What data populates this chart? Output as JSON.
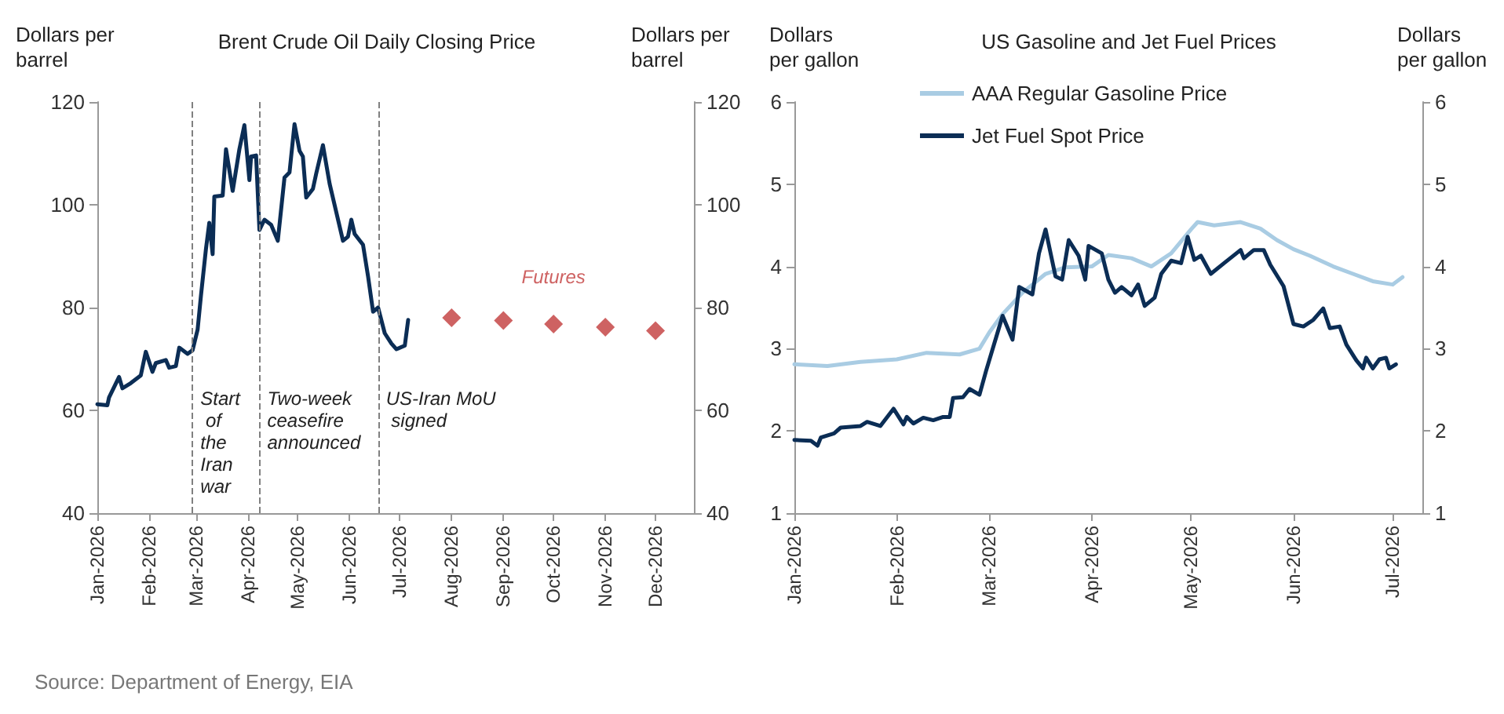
{
  "chart_data": [
    {
      "type": "line",
      "title": "Brent Crude Oil Daily Closing Price",
      "ylabel": "Dollars per barrel",
      "y2label": "Dollars per barrel",
      "annotations": [
        "Source: Department of Energy, EIA"
      ],
      "xlim": [
        "2026-01-01",
        "2026-12-24"
      ],
      "xticks": [
        {
          "value": "2026-01-01",
          "label": "Jan-2026"
        },
        {
          "value": "2026-02-01",
          "label": "Feb-2026"
        },
        {
          "value": "2026-03-01",
          "label": "Mar-2026"
        },
        {
          "value": "2026-04-01",
          "label": "Apr-2026"
        },
        {
          "value": "2026-05-01",
          "label": "May-2026"
        },
        {
          "value": "2026-06-01",
          "label": "Jun-2026"
        },
        {
          "value": "2026-07-01",
          "label": "Jul-2026"
        },
        {
          "value": "2026-08-01",
          "label": "Aug-2026"
        },
        {
          "value": "2026-09-01",
          "label": "Sep-2026"
        },
        {
          "value": "2026-10-01",
          "label": "Oct-2026"
        },
        {
          "value": "2026-11-01",
          "label": "Nov-2026"
        },
        {
          "value": "2026-12-01",
          "label": "Dec-2026"
        }
      ],
      "ylim": [
        40,
        120
      ],
      "yticks": [
        40,
        60,
        80,
        100,
        120
      ],
      "y2lim": [
        40,
        120
      ],
      "y2ticks": [
        40,
        60,
        80,
        100,
        120
      ],
      "grid": false,
      "legend": false,
      "marker": "none",
      "ref_lines": [
        {
          "axis": "x",
          "value": "2026-02-27",
          "label": "Start of the Iran war",
          "color": "#808080",
          "line_style": "dashed"
        },
        {
          "axis": "x",
          "value": "2026-04-08",
          "label": "Two-week ceasefire announced",
          "color": "#808080",
          "line_style": "dashed"
        },
        {
          "axis": "x",
          "value": "2026-06-18",
          "label": "US-Iran MoU signed",
          "color": "#808080",
          "line_style": "dashed"
        }
      ],
      "series": [
        {
          "color": "#0b2d55",
          "x": [
            "2026-01-01",
            "2026-01-07",
            "2026-01-08",
            "2026-01-14",
            "2026-01-16",
            "2026-01-21",
            "2026-01-27",
            "2026-01-30",
            "2026-02-03",
            "2026-02-05",
            "2026-02-11",
            "2026-02-13",
            "2026-02-17",
            "2026-02-19",
            "2026-02-24",
            "2026-02-27",
            "2026-03-02",
            "2026-03-04",
            "2026-03-07",
            "2026-03-09",
            "2026-03-11",
            "2026-03-12",
            "2026-03-17",
            "2026-03-19",
            "2026-03-23",
            "2026-03-27",
            "2026-03-30",
            "2026-04-02",
            "2026-04-03",
            "2026-04-06",
            "2026-04-08",
            "2026-04-11",
            "2026-04-15",
            "2026-04-19",
            "2026-04-23",
            "2026-04-26",
            "2026-04-29",
            "2026-05-02",
            "2026-05-04",
            "2026-05-06",
            "2026-05-10",
            "2026-05-12",
            "2026-05-16",
            "2026-05-20",
            "2026-05-28",
            "2026-05-31",
            "2026-06-02",
            "2026-06-04",
            "2026-06-09",
            "2026-06-12",
            "2026-06-15",
            "2026-06-18",
            "2026-06-22",
            "2026-06-26",
            "2026-06-29",
            "2026-07-04",
            "2026-07-06"
          ],
          "values": [
            61.2,
            61,
            62.5,
            66.5,
            64.3,
            65.3,
            66.8,
            71.4,
            67.5,
            69.2,
            69.8,
            68.3,
            68.6,
            72.2,
            71,
            71.7,
            75.7,
            82.3,
            91.4,
            96.5,
            90.4,
            101.6,
            101.8,
            110.8,
            102.7,
            110.8,
            115.5,
            104.8,
            109.4,
            109.6,
            95.1,
            97.1,
            96.1,
            93,
            105.3,
            106.3,
            115.7,
            110.5,
            109.4,
            101.4,
            103.1,
            106.1,
            111.6,
            104.1,
            93,
            93.8,
            97.1,
            94.3,
            92.2,
            86.1,
            79.2,
            80,
            75,
            73,
            71.9,
            72.6,
            77.6
          ]
        },
        {
          "type": "scatter",
          "name": "Futures",
          "color": "#c23b3b",
          "marker": "diamond",
          "x": [
            "2026-08-01",
            "2026-09-01",
            "2026-10-01",
            "2026-11-01",
            "2026-12-01"
          ],
          "values": [
            78,
            77.5,
            76.8,
            76.2,
            75.5
          ]
        }
      ]
    },
    {
      "type": "line",
      "title": "US Gasoline and Jet Fuel Prices",
      "ylabel": "Dollars per gallon",
      "y2label": "Dollars per gallon",
      "xlim": [
        "2026-01-01",
        "2026-07-10"
      ],
      "xticks": [
        {
          "value": "2026-01-01",
          "label": "Jan-2026"
        },
        {
          "value": "2026-02-01",
          "label": "Feb-2026"
        },
        {
          "value": "2026-03-01",
          "label": "Mar-2026"
        },
        {
          "value": "2026-04-01",
          "label": "Apr-2026"
        },
        {
          "value": "2026-05-01",
          "label": "May-2026"
        },
        {
          "value": "2026-06-01",
          "label": "Jun-2026"
        },
        {
          "value": "2026-07-01",
          "label": "Jul-2026"
        }
      ],
      "ylim": [
        1,
        6
      ],
      "yticks": [
        1,
        2,
        3,
        4,
        5,
        6
      ],
      "y2lim": [
        1,
        6
      ],
      "y2ticks": [
        1,
        2,
        3,
        4,
        5,
        6
      ],
      "grid": false,
      "legend": "top left",
      "marker": "none",
      "series": [
        {
          "name": "AAA Regular Gasoline Price",
          "color": "#a9cce3",
          "x": [
            "2026-01-01",
            "2026-01-11",
            "2026-01-21",
            "2026-02-01",
            "2026-02-10",
            "2026-02-20",
            "2026-02-26",
            "2026-03-01",
            "2026-03-05",
            "2026-03-11",
            "2026-03-18",
            "2026-03-24",
            "2026-04-01",
            "2026-04-06",
            "2026-04-13",
            "2026-04-19",
            "2026-04-25",
            "2026-05-01",
            "2026-05-03",
            "2026-05-08",
            "2026-05-16",
            "2026-05-22",
            "2026-05-27",
            "2026-06-01",
            "2026-06-06",
            "2026-06-13",
            "2026-06-19",
            "2026-06-25",
            "2026-07-01",
            "2026-07-04"
          ],
          "values": [
            2.81,
            2.79,
            2.84,
            2.87,
            2.95,
            2.93,
            3.0,
            3.2,
            3.42,
            3.68,
            3.91,
            3.99,
            4.0,
            4.14,
            4.1,
            4.0,
            4.16,
            4.45,
            4.54,
            4.5,
            4.54,
            4.46,
            4.32,
            4.21,
            4.13,
            4.0,
            3.91,
            3.82,
            3.78,
            3.87
          ]
        },
        {
          "name": "Jet Fuel Spot Price",
          "color": "#0b2d55",
          "x": [
            "2026-01-01",
            "2026-01-06",
            "2026-01-08",
            "2026-01-09",
            "2026-01-13",
            "2026-01-15",
            "2026-01-21",
            "2026-01-23",
            "2026-01-27",
            "2026-01-31",
            "2026-02-03",
            "2026-02-04",
            "2026-02-06",
            "2026-02-09",
            "2026-02-12",
            "2026-02-15",
            "2026-02-17",
            "2026-02-18",
            "2026-02-21",
            "2026-02-23",
            "2026-02-26",
            "2026-02-28",
            "2026-03-05",
            "2026-03-08",
            "2026-03-10",
            "2026-03-14",
            "2026-03-16",
            "2026-03-18",
            "2026-03-21",
            "2026-03-23",
            "2026-03-25",
            "2026-03-28",
            "2026-03-30",
            "2026-03-31",
            "2026-04-04",
            "2026-04-06",
            "2026-04-08",
            "2026-04-10",
            "2026-04-13",
            "2026-04-15",
            "2026-04-17",
            "2026-04-20",
            "2026-04-22",
            "2026-04-25",
            "2026-04-28",
            "2026-04-30",
            "2026-05-02",
            "2026-05-04",
            "2026-05-07",
            "2026-05-11",
            "2026-05-16",
            "2026-05-17",
            "2026-05-20",
            "2026-05-23",
            "2026-05-25",
            "2026-05-29",
            "2026-06-01",
            "2026-06-04",
            "2026-06-07",
            "2026-06-10",
            "2026-06-12",
            "2026-06-15",
            "2026-06-17",
            "2026-06-20",
            "2026-06-22",
            "2026-06-23",
            "2026-06-25",
            "2026-06-27",
            "2026-06-29",
            "2026-06-30",
            "2026-07-02"
          ],
          "values": [
            1.89,
            1.88,
            1.82,
            1.92,
            1.97,
            2.04,
            2.06,
            2.11,
            2.06,
            2.27,
            2.08,
            2.17,
            2.09,
            2.16,
            2.13,
            2.17,
            2.17,
            2.4,
            2.41,
            2.51,
            2.44,
            2.73,
            3.4,
            3.11,
            3.75,
            3.66,
            4.16,
            4.45,
            3.88,
            3.84,
            4.32,
            4.13,
            3.84,
            4.25,
            4.16,
            3.84,
            3.68,
            3.75,
            3.65,
            3.78,
            3.52,
            3.62,
            3.91,
            4.07,
            4.04,
            4.36,
            4.08,
            4.13,
            3.91,
            4.04,
            4.2,
            4.1,
            4.2,
            4.2,
            4.02,
            3.76,
            3.3,
            3.27,
            3.35,
            3.49,
            3.25,
            3.27,
            3.05,
            2.86,
            2.76,
            2.89,
            2.76,
            2.87,
            2.89,
            2.76,
            2.81
          ]
        }
      ]
    }
  ]
}
